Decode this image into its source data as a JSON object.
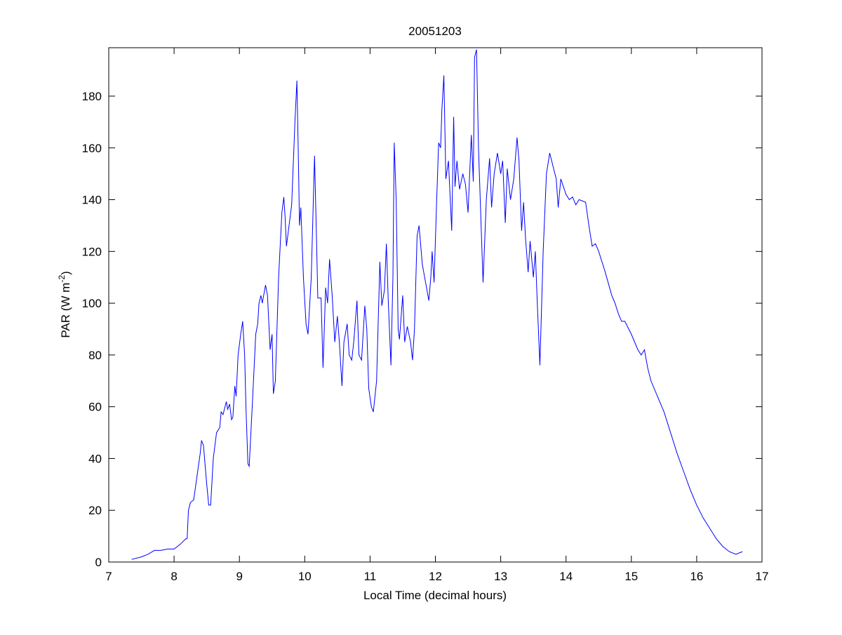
{
  "chart_data": {
    "type": "line",
    "title": "20051203",
    "xlabel": "Local Time (decimal hours)",
    "ylabel": {
      "text": "PAR (W m",
      "superscript": "-2",
      "suffix": ")"
    },
    "xlim": [
      7,
      17
    ],
    "ylim": [
      0,
      198.7
    ],
    "xticks": [
      7,
      8,
      9,
      10,
      11,
      12,
      13,
      14,
      15,
      16,
      17
    ],
    "yticks": [
      0,
      20,
      40,
      60,
      80,
      100,
      120,
      140,
      160,
      180
    ],
    "x": [
      7.35,
      7.5,
      7.6,
      7.7,
      7.8,
      7.9,
      8.0,
      8.1,
      8.18,
      8.2,
      8.22,
      8.25,
      8.3,
      8.35,
      8.4,
      8.42,
      8.45,
      8.5,
      8.53,
      8.56,
      8.6,
      8.65,
      8.7,
      8.72,
      8.75,
      8.8,
      8.82,
      8.85,
      8.88,
      8.9,
      8.93,
      8.95,
      8.98,
      9.02,
      9.05,
      9.08,
      9.1,
      9.13,
      9.15,
      9.2,
      9.25,
      9.28,
      9.3,
      9.33,
      9.35,
      9.4,
      9.43,
      9.47,
      9.5,
      9.52,
      9.55,
      9.6,
      9.65,
      9.68,
      9.7,
      9.72,
      9.75,
      9.8,
      9.85,
      9.88,
      9.9,
      9.92,
      9.94,
      9.98,
      10.02,
      10.05,
      10.1,
      10.15,
      10.18,
      10.2,
      10.25,
      10.28,
      10.32,
      10.35,
      10.38,
      10.42,
      10.46,
      10.5,
      10.53,
      10.57,
      10.6,
      10.65,
      10.68,
      10.72,
      10.75,
      10.8,
      10.83,
      10.87,
      10.92,
      10.95,
      10.98,
      11.02,
      11.05,
      11.1,
      11.15,
      11.18,
      11.22,
      11.25,
      11.28,
      11.32,
      11.35,
      11.37,
      11.4,
      11.43,
      11.45,
      11.5,
      11.53,
      11.57,
      11.62,
      11.65,
      11.68,
      11.72,
      11.75,
      11.8,
      11.85,
      11.9,
      11.93,
      11.95,
      11.98,
      12.02,
      12.05,
      12.08,
      12.1,
      12.13,
      12.16,
      12.2,
      12.25,
      12.28,
      12.3,
      12.33,
      12.37,
      12.42,
      12.46,
      12.5,
      12.55,
      12.58,
      12.6,
      12.63,
      12.66,
      12.7,
      12.73,
      12.78,
      12.83,
      12.86,
      12.9,
      12.95,
      13.0,
      13.03,
      13.07,
      13.1,
      13.15,
      13.2,
      13.25,
      13.28,
      13.32,
      13.35,
      13.38,
      13.42,
      13.45,
      13.5,
      13.53,
      13.56,
      13.6,
      13.65,
      13.7,
      13.75,
      13.8,
      13.85,
      13.88,
      13.92,
      14.0,
      14.05,
      14.1,
      14.15,
      14.2,
      14.3,
      14.35,
      14.4,
      14.45,
      14.5,
      14.6,
      14.7,
      14.75,
      14.8,
      14.85,
      14.9,
      15.0,
      15.1,
      15.15,
      15.2,
      15.25,
      15.3,
      15.4,
      15.5,
      15.6,
      15.7,
      15.8,
      15.9,
      16.0,
      16.1,
      16.2,
      16.3,
      16.4,
      16.5,
      16.6,
      16.7
    ],
    "series": [
      {
        "color": "#0000ff",
        "values": [
          1,
          2,
          3,
          4.5,
          4.5,
          5,
          5,
          7,
          9,
          9,
          20,
          23,
          24,
          33,
          42,
          47,
          45,
          30,
          22,
          22,
          40,
          50,
          52,
          58,
          57,
          62,
          59,
          61,
          55,
          56,
          68,
          64,
          80,
          88,
          93,
          80,
          60,
          38,
          37,
          62,
          88,
          92,
          100,
          103,
          100,
          107,
          103,
          82,
          88,
          65,
          70,
          110,
          135,
          141,
          133,
          122,
          128,
          138,
          170,
          186,
          160,
          130,
          137,
          110,
          92,
          88,
          110,
          157,
          125,
          102,
          102,
          75,
          106,
          100,
          117,
          103,
          85,
          95,
          85,
          68,
          85,
          92,
          80,
          78,
          85,
          101,
          80,
          78,
          99,
          90,
          67,
          60,
          58,
          70,
          116,
          99,
          105,
          123,
          100,
          76,
          110,
          162,
          140,
          90,
          86,
          103,
          85,
          91,
          85,
          78,
          90,
          126,
          130,
          115,
          108,
          101,
          110,
          120,
          108,
          140,
          162,
          160,
          175,
          188,
          148,
          155,
          128,
          172,
          145,
          155,
          144,
          150,
          146,
          135,
          165,
          147,
          195,
          198,
          160,
          130,
          108,
          140,
          156,
          137,
          150,
          158,
          150,
          155,
          131,
          152,
          140,
          148,
          164,
          155,
          128,
          139,
          125,
          112,
          124,
          110,
          120,
          100,
          76,
          120,
          150,
          158,
          153,
          148,
          137,
          148,
          142,
          140,
          141,
          138,
          140,
          139,
          130,
          122,
          123,
          120,
          112,
          103,
          100,
          96,
          93,
          93,
          88,
          82,
          80,
          82,
          75,
          70,
          64,
          58,
          50,
          42,
          35,
          28,
          22,
          17,
          13,
          9,
          6,
          4,
          3,
          4
        ]
      }
    ]
  }
}
